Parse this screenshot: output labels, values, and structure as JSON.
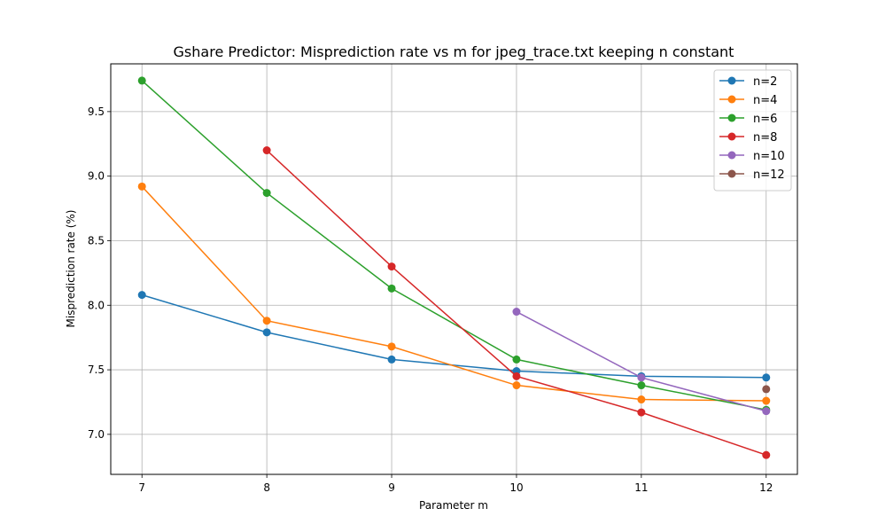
{
  "chart_data": {
    "type": "line",
    "title": "Gshare Predictor: Misprediction rate vs m for jpeg_trace.txt keeping n constant",
    "xlabel": "Parameter m",
    "ylabel": "Misprediction rate (%)",
    "xlim": [
      6.75,
      12.25
    ],
    "ylim": [
      6.69,
      9.87
    ],
    "xticks": [
      7,
      8,
      9,
      10,
      11,
      12
    ],
    "yticks": [
      7.0,
      7.5,
      8.0,
      8.5,
      9.0,
      9.5
    ],
    "xtick_labels": [
      "7",
      "8",
      "9",
      "10",
      "11",
      "12"
    ],
    "ytick_labels": [
      "7.0",
      "7.5",
      "8.0",
      "8.5",
      "9.0",
      "9.5"
    ],
    "grid": true,
    "legend_position": "top-right",
    "series": [
      {
        "name": "n=2",
        "color": "#1f77b4",
        "x": [
          7,
          8,
          9,
          10,
          11,
          12
        ],
        "y": [
          8.08,
          7.79,
          7.58,
          7.49,
          7.45,
          7.44
        ]
      },
      {
        "name": "n=4",
        "color": "#ff7f0e",
        "x": [
          7,
          8,
          9,
          10,
          11,
          12
        ],
        "y": [
          8.92,
          7.88,
          7.68,
          7.38,
          7.27,
          7.26
        ]
      },
      {
        "name": "n=6",
        "color": "#2ca02c",
        "x": [
          7,
          8,
          9,
          10,
          11,
          12
        ],
        "y": [
          9.74,
          8.87,
          8.13,
          7.58,
          7.38,
          7.19
        ]
      },
      {
        "name": "n=8",
        "color": "#d62728",
        "x": [
          8,
          9,
          10,
          11,
          12
        ],
        "y": [
          9.2,
          8.3,
          7.45,
          7.17,
          6.84
        ]
      },
      {
        "name": "n=10",
        "color": "#9467bd",
        "x": [
          10,
          11,
          12
        ],
        "y": [
          7.95,
          7.44,
          7.18
        ]
      },
      {
        "name": "n=12",
        "color": "#8c564b",
        "x": [
          12
        ],
        "y": [
          7.35
        ]
      }
    ]
  }
}
